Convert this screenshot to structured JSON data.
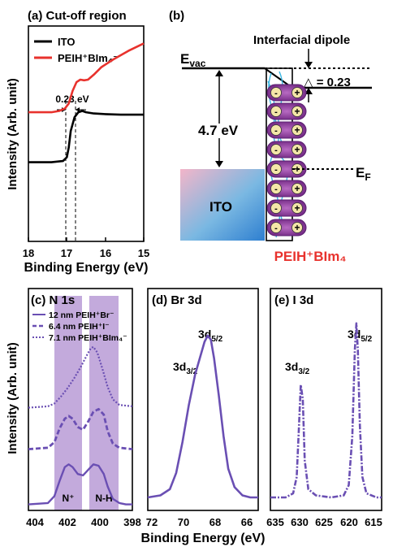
{
  "panel_a": {
    "title": "(a) Cut-off region",
    "ylabel": "Intensity  (Arb. unit)",
    "xlabel": "Binding Energy (eV)",
    "xticks": [
      "18",
      "17",
      "16",
      "15"
    ],
    "annotation": "0.23 eV",
    "legend": [
      {
        "label": "ITO",
        "color": "#000000"
      },
      {
        "label": "PEIH⁺BIm₄⁻",
        "color": "#e8322d"
      }
    ]
  },
  "panel_b": {
    "title": "(b)",
    "dipole_label": "Interfacial dipole",
    "evac_label": "E",
    "evac_sub": "vac",
    "workfunction_label": "4.7 eV",
    "delta_label": "△ = 0.23",
    "ef_label": "E",
    "ef_sub": "F",
    "ito_label": "ITO",
    "molecule_label": "PEIH⁺BIm₄",
    "minus": "-",
    "plus": "+"
  },
  "panel_c": {
    "title": "(c) N 1s",
    "ylabel": "Intensity  (Arb. unit)",
    "xticks": [
      "404",
      "402",
      "400",
      "398"
    ],
    "band_labels": [
      "N⁺",
      "N-H"
    ],
    "legend": [
      {
        "label": "12 nm PEIH⁺Br⁻",
        "dash": "solid"
      },
      {
        "label": "6.4 nm PEIH⁺I⁻",
        "dash": "dash"
      },
      {
        "label": "7.1 nm PEIH⁺BIm₄⁻",
        "dash": "dot"
      }
    ]
  },
  "panel_d": {
    "title": "(d) Br 3d",
    "xticks": [
      "72",
      "70",
      "68",
      "66"
    ],
    "peak_labels": [
      {
        "main": "3d",
        "sub": "3/2"
      },
      {
        "main": "3d",
        "sub": "5/2"
      }
    ]
  },
  "panel_e": {
    "title": "(e) I 3d",
    "xticks": [
      "635",
      "630",
      "625",
      "620",
      "615"
    ],
    "peak_labels": [
      {
        "main": "3d",
        "sub": "3/2"
      },
      {
        "main": "3d",
        "sub": "5/2"
      }
    ]
  },
  "shared_xlabel": "Binding Energy (eV)",
  "colors": {
    "series": "#6a4fb3",
    "band": "#b89bd6",
    "red": "#e8322d",
    "pill": "#8a3a9b"
  },
  "chart_data": [
    {
      "type": "line",
      "title": "(a) Cut-off region",
      "xlabel": "Binding Energy (eV)",
      "ylabel": "Intensity  (Arb. unit)",
      "xlim": [
        18,
        15
      ],
      "series": [
        {
          "name": "ITO",
          "x": [
            18.0,
            17.4,
            17.1,
            17.0,
            16.95,
            16.9,
            16.8,
            16.7,
            16.6,
            16.5,
            16.3,
            16.0,
            15.6,
            15.0
          ],
          "y": [
            0.0,
            0.0,
            0.01,
            0.04,
            0.12,
            0.25,
            0.36,
            0.4,
            0.41,
            0.4,
            0.39,
            0.385,
            0.38,
            0.38
          ]
        },
        {
          "name": "PEIH⁺BIm₄⁻",
          "x": [
            18.0,
            17.4,
            17.2,
            17.05,
            16.95,
            16.85,
            16.75,
            16.65,
            16.55,
            16.45,
            16.3,
            16.1,
            15.8,
            15.4,
            15.0
          ],
          "y": [
            0.4,
            0.4,
            0.41,
            0.43,
            0.47,
            0.57,
            0.64,
            0.66,
            0.655,
            0.66,
            0.7,
            0.76,
            0.82,
            0.89,
            0.95
          ]
        }
      ]
    },
    {
      "type": "line",
      "title": "(c) N 1s",
      "xlim": [
        405,
        397
      ],
      "series": [
        {
          "name": "12 nm PEIH⁺Br⁻",
          "x": [
            405.0,
            403.5,
            403.0,
            402.6,
            402.2,
            401.9,
            401.6,
            401.2,
            400.8,
            400.4,
            400.0,
            399.6,
            399.2,
            398.9,
            398.5,
            398.0,
            397.5,
            397.0
          ],
          "y": [
            0.02,
            0.03,
            0.08,
            0.19,
            0.29,
            0.31,
            0.29,
            0.24,
            0.23,
            0.27,
            0.31,
            0.3,
            0.24,
            0.15,
            0.06,
            0.03,
            0.02,
            0.02
          ]
        },
        {
          "name": "6.4 nm PEIH⁺I⁻",
          "x": [
            405.0,
            403.5,
            403.0,
            402.6,
            402.2,
            401.9,
            401.6,
            401.2,
            400.8,
            400.4,
            400.0,
            399.6,
            399.2,
            398.9,
            398.5,
            398.0,
            397.0
          ],
          "y": [
            0.42,
            0.43,
            0.47,
            0.57,
            0.64,
            0.66,
            0.64,
            0.58,
            0.56,
            0.62,
            0.69,
            0.71,
            0.67,
            0.55,
            0.46,
            0.43,
            0.42
          ]
        },
        {
          "name": "7.1 nm PEIH⁺BIm₄⁻",
          "x": [
            405.0,
            403.5,
            403.0,
            402.5,
            402.0,
            401.5,
            401.0,
            400.5,
            400.2,
            400.0,
            399.7,
            399.3,
            398.9,
            398.5,
            398.0,
            397.0
          ],
          "y": [
            0.72,
            0.73,
            0.75,
            0.8,
            0.86,
            0.93,
            1.01,
            1.1,
            1.15,
            1.16,
            1.12,
            1.0,
            0.87,
            0.78,
            0.74,
            0.73
          ]
        }
      ]
    },
    {
      "type": "line",
      "title": "(d) Br 3d",
      "xlim": [
        72,
        65
      ],
      "series": [
        {
          "name": "",
          "x": [
            72.0,
            71.2,
            70.6,
            70.2,
            69.8,
            69.4,
            69.0,
            68.7,
            68.4,
            68.2,
            68.0,
            67.8,
            67.5,
            67.2,
            66.9,
            66.5,
            66.0,
            65.5,
            65.0
          ],
          "y": [
            0.0,
            0.01,
            0.04,
            0.12,
            0.27,
            0.45,
            0.6,
            0.68,
            0.76,
            0.79,
            0.77,
            0.68,
            0.5,
            0.3,
            0.14,
            0.05,
            0.01,
            0.0,
            0.0
          ]
        }
      ]
    },
    {
      "type": "line",
      "title": "(e) I 3d",
      "xlim": [
        636,
        614
      ],
      "series": [
        {
          "name": "",
          "x": [
            636.0,
            633.0,
            631.5,
            630.8,
            630.4,
            630.0,
            629.6,
            629.2,
            628.5,
            627.0,
            624.0,
            621.5,
            620.5,
            619.8,
            619.3,
            619.0,
            618.7,
            618.3,
            617.8,
            617.0,
            615.0,
            614.0
          ],
          "y": [
            0.0,
            0.0,
            0.02,
            0.1,
            0.32,
            0.55,
            0.48,
            0.18,
            0.04,
            0.01,
            0.0,
            0.01,
            0.06,
            0.3,
            0.72,
            0.85,
            0.72,
            0.35,
            0.1,
            0.02,
            0.0,
            0.0
          ]
        }
      ]
    }
  ]
}
